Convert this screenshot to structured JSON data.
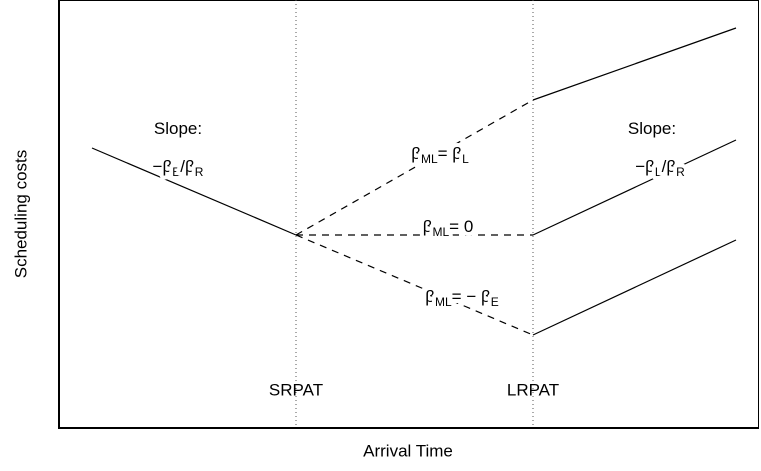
{
  "axes": {
    "y_label": "Scheduling costs",
    "x_label": "Arrival Time"
  },
  "markers": [
    "SRPAT",
    "LRPAT"
  ],
  "labels": [
    {
      "parts": [
        {
          "text": "Slope:"
        }
      ]
    },
    {
      "parts": [
        {
          "text": "−β"
        },
        {
          "sub": "E"
        },
        {
          "text": "/β"
        },
        {
          "sub": "R"
        }
      ]
    },
    {
      "parts": [
        {
          "text": "β"
        },
        {
          "sub": "ML"
        },
        {
          "text": "= β"
        },
        {
          "sub": "L"
        }
      ]
    },
    {
      "parts": [
        {
          "text": "β"
        },
        {
          "sub": "ML"
        },
        {
          "text": "= 0"
        }
      ]
    },
    {
      "parts": [
        {
          "text": "β"
        },
        {
          "sub": "ML"
        },
        {
          "text": "= − β"
        },
        {
          "sub": "E"
        }
      ]
    },
    {
      "parts": [
        {
          "text": "Slope:"
        }
      ]
    },
    {
      "parts": [
        {
          "text": "−β"
        },
        {
          "sub": "L"
        },
        {
          "text": "/β"
        },
        {
          "sub": "R"
        }
      ]
    }
  ]
}
